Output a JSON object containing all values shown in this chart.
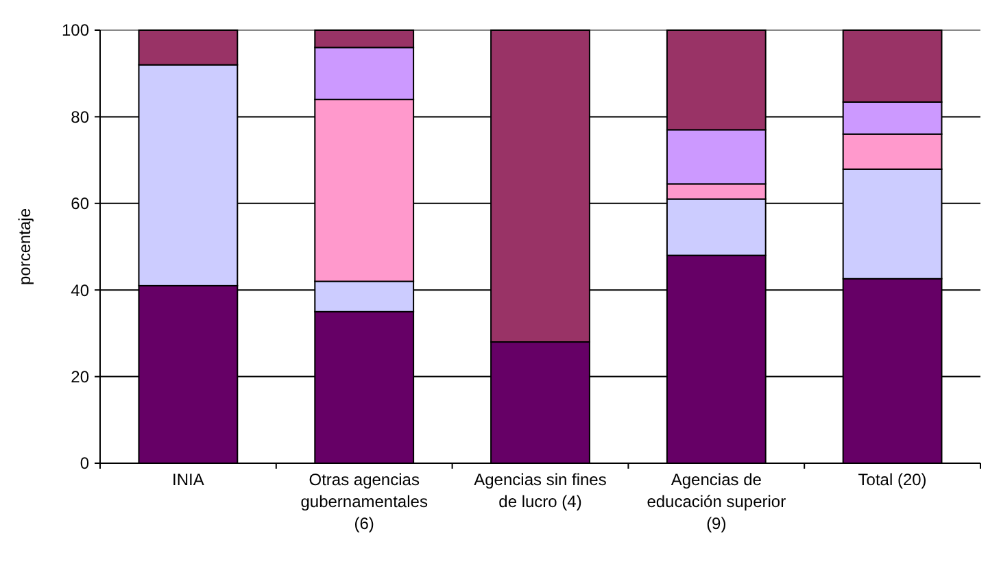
{
  "chart_data": {
    "type": "bar",
    "stacked": true,
    "ylabel": "porcentaje",
    "categories": [
      "INIA",
      "Otras agencias gubernamentales (6)",
      "Agencias sin fines de lucro (4)",
      "Agencias de educación superior (9)",
      "Total (20)"
    ],
    "series": [
      {
        "color": "#660066",
        "values": [
          41,
          35,
          28,
          48,
          42.6
        ]
      },
      {
        "color": "#ccccff",
        "values": [
          51,
          7,
          0,
          13,
          25.3
        ]
      },
      {
        "color": "#ff99cc",
        "values": [
          0,
          42,
          0,
          3.5,
          8.1
        ]
      },
      {
        "color": "#cc99ff",
        "values": [
          0,
          12,
          0,
          12.5,
          7.4
        ]
      },
      {
        "color": "#993366",
        "values": [
          8,
          4,
          72,
          23,
          16.6
        ]
      }
    ],
    "ylim": [
      0,
      100
    ],
    "yticks": [
      0,
      20,
      40,
      60,
      80,
      100
    ],
    "grid": "y"
  }
}
